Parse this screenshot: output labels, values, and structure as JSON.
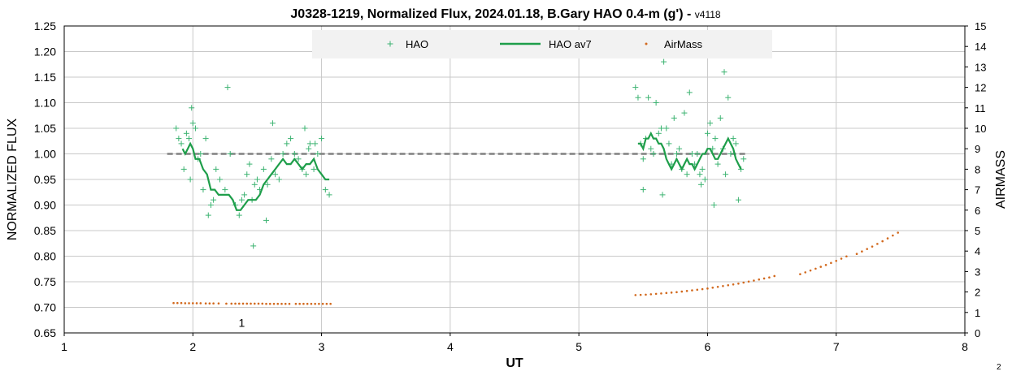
{
  "chart_data": {
    "type": "scatter",
    "title": "J0328-1219, Normalized Flux, 2024.01.18, B.Gary HAO 0.4-m (g')",
    "title_suffix": " - ",
    "version": "v4118",
    "xlabel": "UT",
    "ylabel": "NORMALIZED FLUX",
    "y2label": "AIRMASS",
    "xlim": [
      1,
      8
    ],
    "ylim": [
      0.65,
      1.25
    ],
    "y2lim": [
      0,
      15
    ],
    "xticks": [
      "1",
      "2",
      "3",
      "4",
      "5",
      "6",
      "7",
      "8"
    ],
    "yticks": [
      "0.65",
      "0.70",
      "0.75",
      "0.80",
      "0.85",
      "0.90",
      "0.95",
      "1.00",
      "1.05",
      "1.10",
      "1.15",
      "1.20",
      "1.25"
    ],
    "y2ticks": [
      "0",
      "1",
      "2",
      "3",
      "4",
      "5",
      "6",
      "7",
      "8",
      "9",
      "10",
      "11",
      "12",
      "13",
      "14",
      "15"
    ],
    "grid": true,
    "legend_position": "top",
    "reference_line": {
      "y": 1.0,
      "x_start": 1.8,
      "x_end": 6.3,
      "style": "dashed",
      "color": "#808080"
    },
    "annotations": [
      {
        "text": "1",
        "x": 2.38,
        "y": 0.67
      }
    ],
    "corner_text": "2",
    "series": [
      {
        "name": "HAO",
        "kind": "plus",
        "color": "#3cb371",
        "x": [
          1.87,
          1.89,
          1.91,
          1.93,
          1.95,
          1.97,
          1.98,
          1.99,
          2.0,
          2.02,
          2.04,
          2.06,
          2.08,
          2.1,
          2.12,
          2.14,
          2.16,
          2.18,
          2.21,
          2.25,
          2.29,
          2.33,
          2.36,
          2.38,
          2.4,
          2.42,
          2.44,
          2.46,
          2.48,
          2.5,
          2.52,
          2.55,
          2.58,
          2.61,
          2.64,
          2.67,
          2.7,
          2.73,
          2.76,
          2.79,
          2.82,
          2.85,
          2.88,
          2.91,
          2.94,
          2.97,
          3.0,
          3.03,
          3.06,
          2.27,
          2.47,
          2.57,
          2.87,
          2.95,
          2.62,
          2.9,
          5.44,
          5.46,
          5.48,
          5.5,
          5.52,
          5.54,
          5.56,
          5.58,
          5.6,
          5.62,
          5.64,
          5.66,
          5.68,
          5.7,
          5.72,
          5.74,
          5.76,
          5.78,
          5.8,
          5.82,
          5.84,
          5.86,
          5.88,
          5.9,
          5.92,
          5.94,
          5.96,
          5.98,
          6.0,
          6.02,
          6.04,
          6.06,
          6.08,
          6.1,
          6.12,
          6.14,
          6.16,
          6.18,
          6.2,
          6.22,
          6.24,
          6.26,
          6.28,
          5.65,
          5.95,
          6.05,
          5.5,
          6.13
        ],
        "y": [
          1.05,
          1.03,
          1.02,
          0.97,
          1.04,
          1.03,
          0.95,
          1.09,
          1.06,
          1.05,
          0.99,
          1.0,
          0.93,
          1.03,
          0.88,
          0.9,
          0.91,
          0.97,
          0.95,
          0.93,
          1.0,
          0.9,
          0.88,
          0.91,
          0.92,
          0.96,
          0.98,
          0.91,
          0.94,
          0.95,
          0.93,
          0.97,
          0.94,
          0.99,
          0.96,
          0.95,
          1.0,
          1.02,
          1.03,
          1.0,
          0.99,
          0.97,
          0.96,
          1.02,
          0.97,
          1.0,
          1.03,
          0.93,
          0.92,
          1.13,
          0.82,
          0.87,
          1.05,
          1.02,
          1.06,
          1.01,
          1.13,
          1.11,
          1.02,
          0.99,
          1.03,
          1.11,
          1.01,
          1.0,
          1.1,
          1.04,
          1.05,
          1.18,
          1.05,
          1.02,
          0.98,
          1.07,
          1.0,
          1.01,
          0.97,
          1.08,
          0.96,
          1.12,
          1.0,
          0.98,
          1.0,
          0.96,
          0.97,
          0.95,
          1.04,
          1.06,
          1.01,
          1.03,
          0.98,
          1.07,
          1.01,
          0.96,
          1.11,
          1.0,
          1.03,
          1.02,
          0.91,
          0.97,
          0.99,
          0.92,
          0.94,
          0.9,
          0.93,
          1.16
        ],
        "more_low": [
          0.86,
          0.87
        ]
      },
      {
        "name": "HAO av7",
        "kind": "line",
        "color": "#1e9e4a",
        "x": [
          1.92,
          1.94,
          1.96,
          1.98,
          2.0,
          2.02,
          2.05,
          2.08,
          2.11,
          2.14,
          2.17,
          2.2,
          2.24,
          2.28,
          2.31,
          2.34,
          2.37,
          2.4,
          2.43,
          2.46,
          2.49,
          2.52,
          2.55,
          2.58,
          2.61,
          2.64,
          2.67,
          2.7,
          2.73,
          2.76,
          2.79,
          2.82,
          2.85,
          2.88,
          2.91,
          2.94,
          2.97,
          3.0,
          3.03,
          3.06,
          5.46,
          5.48,
          5.5,
          5.52,
          5.54,
          5.56,
          5.58,
          5.6,
          5.62,
          5.64,
          5.66,
          5.68,
          5.7,
          5.72,
          5.74,
          5.76,
          5.78,
          5.8,
          5.82,
          5.84,
          5.86,
          5.88,
          5.9,
          5.92,
          5.94,
          5.96,
          5.98,
          6.0,
          6.02,
          6.04,
          6.06,
          6.08,
          6.1,
          6.12,
          6.14,
          6.16,
          6.18,
          6.2,
          6.22,
          6.24,
          6.26
        ],
        "y": [
          1.01,
          1.0,
          1.01,
          1.02,
          1.01,
          0.99,
          0.99,
          0.97,
          0.96,
          0.93,
          0.93,
          0.92,
          0.92,
          0.92,
          0.91,
          0.89,
          0.89,
          0.9,
          0.91,
          0.91,
          0.91,
          0.92,
          0.94,
          0.95,
          0.96,
          0.97,
          0.98,
          0.99,
          0.98,
          0.98,
          0.99,
          0.98,
          0.97,
          0.98,
          0.98,
          0.99,
          0.97,
          0.96,
          0.95,
          0.95,
          1.02,
          1.02,
          1.01,
          1.03,
          1.03,
          1.04,
          1.03,
          1.03,
          1.02,
          1.02,
          1.01,
          0.99,
          0.98,
          0.97,
          0.98,
          0.99,
          0.98,
          0.97,
          0.98,
          0.99,
          0.98,
          0.98,
          0.97,
          0.98,
          0.99,
          1.0,
          1.0,
          1.01,
          1.01,
          1.0,
          0.99,
          0.99,
          1.0,
          1.01,
          1.02,
          1.03,
          1.02,
          1.01,
          0.99,
          0.98,
          0.97
        ]
      },
      {
        "name": "AirMass",
        "kind": "dot",
        "color": "#d2691e",
        "axis": "y2",
        "x": [
          1.85,
          1.88,
          1.91,
          1.94,
          1.97,
          2.0,
          2.03,
          2.06,
          2.1,
          2.13,
          2.16,
          2.2,
          2.26,
          2.3,
          2.33,
          2.36,
          2.39,
          2.42,
          2.45,
          2.48,
          2.51,
          2.54,
          2.57,
          2.6,
          2.63,
          2.66,
          2.69,
          2.72,
          2.75,
          2.8,
          2.83,
          2.86,
          2.89,
          2.92,
          2.95,
          2.98,
          3.01,
          3.04,
          3.07,
          5.44,
          5.48,
          5.52,
          5.56,
          5.6,
          5.64,
          5.68,
          5.72,
          5.76,
          5.8,
          5.84,
          5.88,
          5.92,
          5.96,
          6.0,
          6.04,
          6.08,
          6.12,
          6.16,
          6.2,
          6.24,
          6.28,
          6.32,
          6.36,
          6.4,
          6.44,
          6.48,
          6.52,
          6.72,
          6.76,
          6.8,
          6.84,
          6.88,
          6.92,
          6.96,
          7.0,
          7.04,
          7.08,
          7.16,
          7.2,
          7.24,
          7.28,
          7.32,
          7.36,
          7.4,
          7.44,
          7.48
        ],
        "y": [
          1.46,
          1.46,
          1.46,
          1.45,
          1.45,
          1.45,
          1.45,
          1.45,
          1.44,
          1.44,
          1.44,
          1.44,
          1.43,
          1.43,
          1.43,
          1.43,
          1.43,
          1.43,
          1.43,
          1.43,
          1.43,
          1.43,
          1.42,
          1.42,
          1.42,
          1.42,
          1.42,
          1.42,
          1.42,
          1.42,
          1.42,
          1.42,
          1.42,
          1.42,
          1.42,
          1.42,
          1.42,
          1.42,
          1.42,
          1.85,
          1.86,
          1.87,
          1.89,
          1.91,
          1.93,
          1.95,
          1.97,
          1.99,
          2.02,
          2.05,
          2.08,
          2.11,
          2.14,
          2.17,
          2.21,
          2.25,
          2.29,
          2.33,
          2.37,
          2.41,
          2.46,
          2.51,
          2.56,
          2.61,
          2.66,
          2.71,
          2.78,
          2.87,
          2.96,
          3.05,
          3.14,
          3.23,
          3.32,
          3.42,
          3.52,
          3.63,
          3.74,
          3.86,
          3.98,
          4.1,
          4.22,
          4.35,
          4.48,
          4.62,
          4.76,
          4.9
        ]
      }
    ]
  }
}
